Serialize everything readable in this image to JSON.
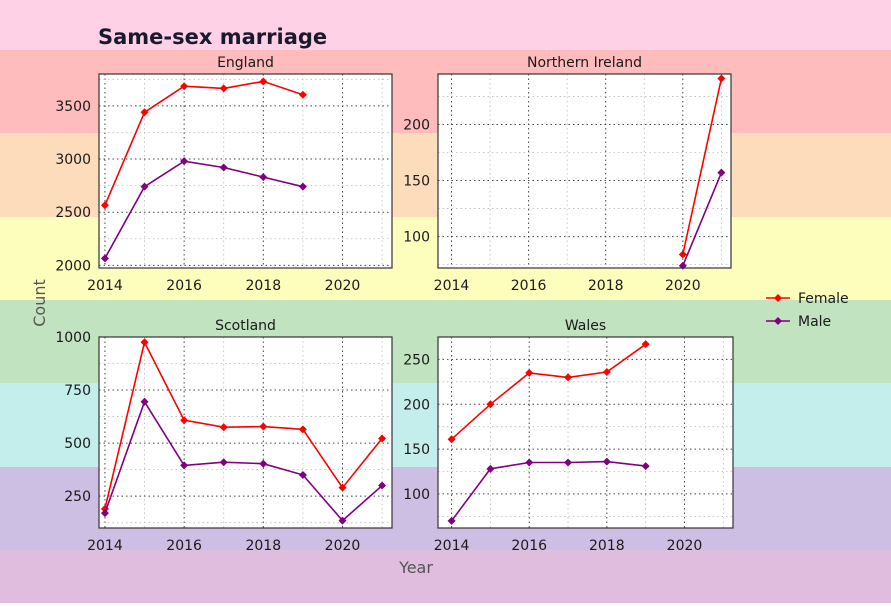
{
  "title": "Same-sex marriage",
  "xlabel": "Year",
  "ylabel": "Count",
  "legend": {
    "placement": "right",
    "items": [
      {
        "name": "Female",
        "color": "#ff0000"
      },
      {
        "name": "Male",
        "color": "#800080"
      }
    ]
  },
  "background_bands": [
    "#ffd1e6",
    "#ffbcbc",
    "#fddcbc",
    "#fdfdbc",
    "#c1e3bf",
    "#c4eeeb",
    "#cdbfe4",
    "#e0bddf"
  ],
  "chart_data": [
    {
      "type": "line",
      "title": "England",
      "x": [
        2014,
        2015,
        2016,
        2017,
        2018,
        2019
      ],
      "xlim": [
        2013.85,
        2021.25
      ],
      "ylim": [
        1975,
        3800
      ],
      "xticks": [
        "2014",
        "2016",
        "2018",
        "2020"
      ],
      "xtick_values": [
        2014,
        2016,
        2018,
        2020
      ],
      "yticks": [
        "2000",
        "2500",
        "3000",
        "3500"
      ],
      "ytick_values": [
        2000,
        2500,
        3000,
        3500
      ],
      "grid": true,
      "series": [
        {
          "name": "Female",
          "values": [
            2565,
            3440,
            3685,
            3665,
            3730,
            3605
          ]
        },
        {
          "name": "Male",
          "values": [
            2065,
            2740,
            2980,
            2920,
            2830,
            2740
          ]
        }
      ]
    },
    {
      "type": "line",
      "title": "Northern Ireland",
      "x": [
        2020,
        2021
      ],
      "xlim": [
        2013.65,
        2021.25
      ],
      "ylim": [
        72,
        245
      ],
      "xticks": [
        "2014",
        "2016",
        "2018",
        "2020"
      ],
      "xtick_values": [
        2014,
        2016,
        2018,
        2020
      ],
      "yticks": [
        "100",
        "150",
        "200"
      ],
      "ytick_values": [
        100,
        150,
        200
      ],
      "grid": true,
      "series": [
        {
          "name": "Female",
          "values": [
            84,
            241
          ]
        },
        {
          "name": "Male",
          "values": [
            74,
            157
          ]
        }
      ]
    },
    {
      "type": "line",
      "title": "Scotland",
      "x": [
        2014,
        2015,
        2016,
        2017,
        2018,
        2019,
        2020,
        2021
      ],
      "xlim": [
        2013.85,
        2021.25
      ],
      "ylim": [
        100,
        1000
      ],
      "xticks": [
        "2014",
        "2016",
        "2018",
        "2020"
      ],
      "xtick_values": [
        2014,
        2016,
        2018,
        2020
      ],
      "yticks": [
        "250",
        "500",
        "750",
        "1000"
      ],
      "ytick_values": [
        250,
        500,
        750,
        1000
      ],
      "grid": true,
      "series": [
        {
          "name": "Female",
          "values": [
            190,
            975,
            608,
            575,
            578,
            565,
            290,
            522
          ]
        },
        {
          "name": "Male",
          "values": [
            170,
            695,
            395,
            410,
            403,
            350,
            135,
            300
          ]
        }
      ]
    },
    {
      "type": "line",
      "title": "Wales",
      "x": [
        2014,
        2015,
        2016,
        2017,
        2018,
        2019
      ],
      "xlim": [
        2013.65,
        2021.25
      ],
      "ylim": [
        62,
        275
      ],
      "xticks": [
        "2014",
        "2016",
        "2018",
        "2020"
      ],
      "xtick_values": [
        2014,
        2016,
        2018,
        2020
      ],
      "yticks": [
        "100",
        "150",
        "200",
        "250"
      ],
      "ytick_values": [
        100,
        150,
        200,
        250
      ],
      "grid": true,
      "series": [
        {
          "name": "Female",
          "values": [
            161,
            200,
            235,
            230,
            236,
            267
          ]
        },
        {
          "name": "Male",
          "values": [
            70,
            128,
            135,
            135,
            136,
            131
          ]
        }
      ]
    }
  ]
}
